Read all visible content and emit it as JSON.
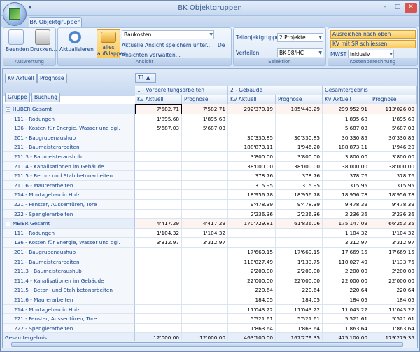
{
  "window": {
    "title": "BK Objektgruppen",
    "minimize": "–",
    "maximize": "□",
    "close": "✕",
    "quick_access": "▾"
  },
  "ribbon": {
    "tab": "BK Objektgruppen",
    "groups": {
      "auswertung": {
        "label": "Auswertung",
        "beenden": "Beenden",
        "drucken": "Drucken..."
      },
      "ansicht": {
        "label": "Ansicht",
        "aktualisieren": "Aktualisieren",
        "alles1": "alles",
        "alles2": "aufklappen",
        "view_value": "Baukosten",
        "save_view": "Aktuelle Ansicht speichern unter...",
        "save_lang": "De",
        "manage_views": "Ansichten verwalten..."
      },
      "selektion": {
        "label": "Selektion",
        "teil_label": "Teilobjektgruppen",
        "teil_value": "2 Projekte",
        "verteilen_label": "Verteilen",
        "verteilen_value": "BK-98/HC"
      },
      "kostenberechnung": {
        "label": "Kostenberechnung",
        "btn1": "Ausreichen nach oben",
        "btn2": "KV mit SR schliessen",
        "mwst_label": "MWST",
        "mwst_value": "inklusiv"
      }
    }
  },
  "pivot": {
    "data_fields": [
      "Kv Aktuell",
      "Prognose"
    ],
    "row_fields": [
      "Gruppe",
      "Buchung"
    ],
    "column_field": "T1 ▲",
    "col_groups": [
      "1 - Vorbereitungsarbeiten",
      "2 - Gebäude",
      "Gesamtergebnis"
    ],
    "sub_headers": [
      "Kv Aktuell",
      "Prognose",
      "Kv Aktuell",
      "Prognose",
      "Kv Aktuell",
      "Prognose"
    ],
    "rows": [
      {
        "type": "group",
        "label": "HUBER Gesamt",
        "values": [
          "7'582.71",
          "7'582.71",
          "292'370.19",
          "105'443.29",
          "299'952.91",
          "113'026.00"
        ]
      },
      {
        "type": "item",
        "label": "111 - Rodungen",
        "values": [
          "1'895.68",
          "1'895.68",
          "",
          "",
          "1'895.68",
          "1'895.68"
        ]
      },
      {
        "type": "item",
        "label": "136 - Kosten für Energie, Wasser und dgl.",
        "values": [
          "5'687.03",
          "5'687.03",
          "",
          "",
          "5'687.03",
          "5'687.03"
        ]
      },
      {
        "type": "item",
        "label": "201 - Baugrubenaushub",
        "values": [
          "",
          "",
          "30'330.85",
          "30'330.85",
          "30'330.85",
          "30'330.85"
        ]
      },
      {
        "type": "item",
        "label": "211 - Baumeisterarbeiten",
        "values": [
          "",
          "",
          "188'873.11",
          "1'946.20",
          "188'873.11",
          "1'946.20"
        ]
      },
      {
        "type": "item",
        "label": "211.3 - Baumeisteraushub",
        "values": [
          "",
          "",
          "3'800.00",
          "3'800.00",
          "3'800.00",
          "3'800.00"
        ]
      },
      {
        "type": "item",
        "label": "211.4 - Kanalisationen im Gebäude",
        "values": [
          "",
          "",
          "38'000.00",
          "38'000.00",
          "38'000.00",
          "38'000.00"
        ]
      },
      {
        "type": "item",
        "label": "211.5 - Beton- und Stahlbetonarbeiten",
        "values": [
          "",
          "",
          "378.76",
          "378.76",
          "378.76",
          "378.76"
        ]
      },
      {
        "type": "item",
        "label": "211.6 - Maurerarbeiten",
        "values": [
          "",
          "",
          "315.95",
          "315.95",
          "315.95",
          "315.95"
        ]
      },
      {
        "type": "item",
        "label": "214 - Montagebau in Holz",
        "values": [
          "",
          "",
          "18'956.78",
          "18'956.78",
          "18'956.78",
          "18'956.78"
        ]
      },
      {
        "type": "item",
        "label": "221 - Fenster, Aussentüren, Tore",
        "values": [
          "",
          "",
          "9'478.39",
          "9'478.39",
          "9'478.39",
          "9'478.39"
        ]
      },
      {
        "type": "item",
        "label": "222 - Spenglerarbeiten",
        "values": [
          "",
          "",
          "2'236.36",
          "2'236.36",
          "2'236.36",
          "2'236.36"
        ]
      },
      {
        "type": "group",
        "label": "MEIER Gesamt",
        "values": [
          "4'417.29",
          "4'417.29",
          "170'729.81",
          "61'836.06",
          "175'147.09",
          "66'253.35"
        ]
      },
      {
        "type": "item",
        "label": "111 - Rodungen",
        "values": [
          "1'104.32",
          "1'104.32",
          "",
          "",
          "1'104.32",
          "1'104.32"
        ]
      },
      {
        "type": "item",
        "label": "136 - Kosten für Energie, Wasser und dgl.",
        "values": [
          "3'312.97",
          "3'312.97",
          "",
          "",
          "3'312.97",
          "3'312.97"
        ]
      },
      {
        "type": "item",
        "label": "201 - Baugrubenaushub",
        "values": [
          "",
          "",
          "17'669.15",
          "17'669.15",
          "17'669.15",
          "17'669.15"
        ]
      },
      {
        "type": "item",
        "label": "211 - Baumeisterarbeiten",
        "values": [
          "",
          "",
          "110'027.49",
          "1'133.75",
          "110'027.49",
          "1'133.75"
        ]
      },
      {
        "type": "item",
        "label": "211.3 - Baumeisteraushub",
        "values": [
          "",
          "",
          "2'200.00",
          "2'200.00",
          "2'200.00",
          "2'200.00"
        ]
      },
      {
        "type": "item",
        "label": "211.4 - Kanalisationen im Gebäude",
        "values": [
          "",
          "",
          "22'000.00",
          "22'000.00",
          "22'000.00",
          "22'000.00"
        ]
      },
      {
        "type": "item",
        "label": "211.5 - Beton- und Stahlbetonarbeiten",
        "values": [
          "",
          "",
          "220.64",
          "220.64",
          "220.64",
          "220.64"
        ]
      },
      {
        "type": "item",
        "label": "211.6 - Maurerarbeiten",
        "values": [
          "",
          "",
          "184.05",
          "184.05",
          "184.05",
          "184.05"
        ]
      },
      {
        "type": "item",
        "label": "214 - Montagebau in Holz",
        "values": [
          "",
          "",
          "11'043.22",
          "11'043.22",
          "11'043.22",
          "11'043.22"
        ]
      },
      {
        "type": "item",
        "label": "221 - Fenster, Aussentüren, Tore",
        "values": [
          "",
          "",
          "5'521.61",
          "5'521.61",
          "5'521.61",
          "5'521.61"
        ]
      },
      {
        "type": "item",
        "label": "222 - Spenglerarbeiten",
        "values": [
          "",
          "",
          "1'863.64",
          "1'863.64",
          "1'863.64",
          "1'863.64"
        ]
      },
      {
        "type": "total",
        "label": "Gesamtergebnis",
        "values": [
          "12'000.00",
          "12'000.00",
          "463'100.00",
          "167'279.35",
          "475'100.00",
          "179'279.35"
        ]
      }
    ]
  }
}
